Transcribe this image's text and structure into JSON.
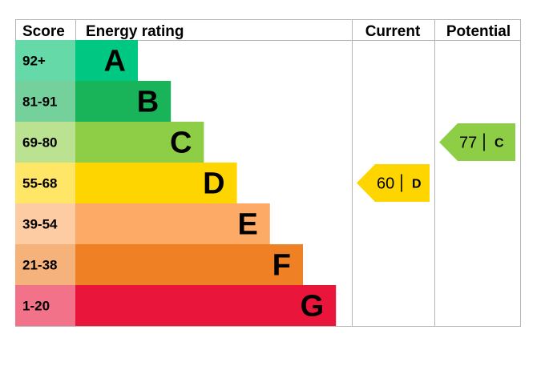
{
  "chart_data": {
    "type": "table",
    "headers": {
      "score": "Score",
      "rating": "Energy rating",
      "current": "Current",
      "potential": "Potential"
    },
    "bands": [
      {
        "score": "92+",
        "letter": "A",
        "bar_color": "#00c781",
        "score_color": "#66d9a8",
        "relative_length": 1
      },
      {
        "score": "81-91",
        "letter": "B",
        "bar_color": "#19b459",
        "score_color": "#75d19b",
        "relative_length": 2
      },
      {
        "score": "69-80",
        "letter": "C",
        "bar_color": "#8dce46",
        "score_color": "#bbe290",
        "relative_length": 3
      },
      {
        "score": "55-68",
        "letter": "D",
        "bar_color": "#ffd500",
        "score_color": "#ffe666",
        "relative_length": 4
      },
      {
        "score": "39-54",
        "letter": "E",
        "bar_color": "#fcaa65",
        "score_color": "#fdcca3",
        "relative_length": 5
      },
      {
        "score": "21-38",
        "letter": "F",
        "bar_color": "#ef8023",
        "score_color": "#f5b37b",
        "relative_length": 6
      },
      {
        "score": "1-20",
        "letter": "G",
        "bar_color": "#e9153b",
        "score_color": "#f27389",
        "relative_length": 7
      }
    ],
    "current": {
      "value": "60",
      "letter": "D",
      "color": "#ffd500"
    },
    "potential": {
      "value": "77",
      "letter": "C",
      "color": "#8dce46"
    }
  }
}
